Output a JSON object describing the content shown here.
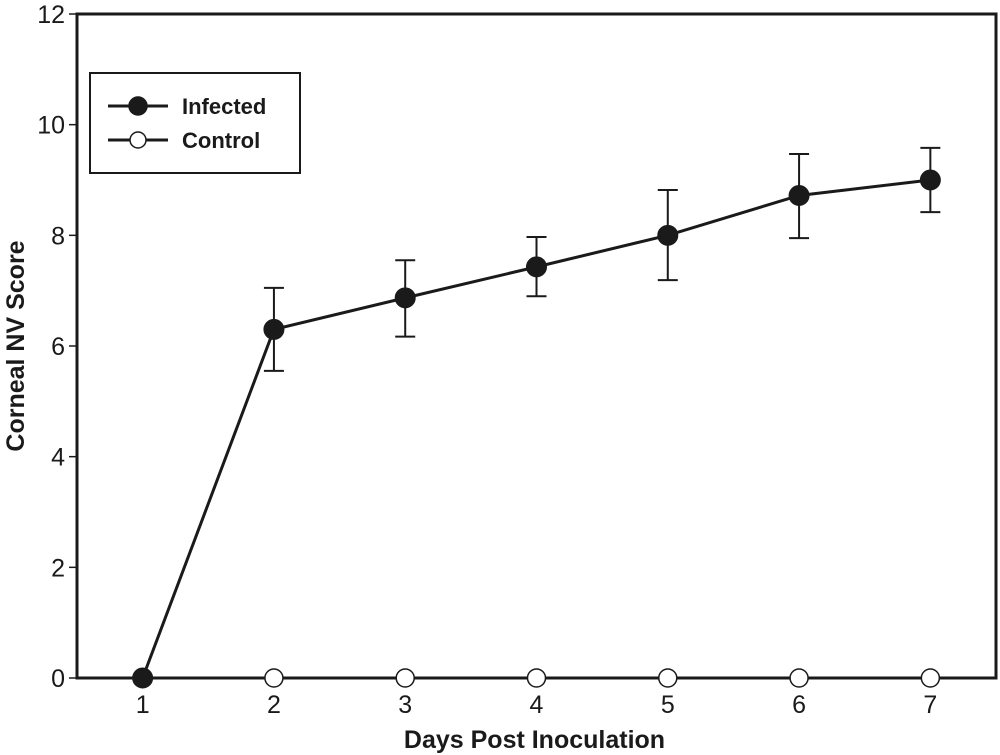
{
  "chart_data": {
    "type": "line",
    "title": "",
    "xlabel": "Days Post Inoculation",
    "ylabel": "Corneal NV Score",
    "xlim": [
      0.5,
      7.5
    ],
    "ylim": [
      0,
      12
    ],
    "x_ticks": [
      1,
      2,
      3,
      4,
      5,
      6,
      7
    ],
    "x_tick_labels": [
      "1",
      "2",
      "3",
      "4",
      "5",
      "6",
      "7"
    ],
    "y_ticks": [
      0,
      2,
      4,
      6,
      8,
      10,
      12
    ],
    "y_tick_labels": [
      "0",
      "2",
      "4",
      "6",
      "8",
      "10",
      "12"
    ],
    "grid": false,
    "legend_position": "top-left",
    "x": [
      1,
      2,
      3,
      4,
      5,
      6,
      7
    ],
    "series": [
      {
        "name": "Infected",
        "marker": "filled-circle",
        "color": "#1a1a1a",
        "values": [
          0,
          6.3,
          6.87,
          7.43,
          8.0,
          8.72,
          9.0
        ],
        "error_upper": [
          null,
          7.05,
          7.55,
          7.97,
          8.82,
          9.47,
          9.58
        ],
        "error_lower": [
          null,
          5.55,
          6.17,
          6.9,
          7.19,
          7.95,
          8.42
        ]
      },
      {
        "name": "Control",
        "marker": "open-circle",
        "color": "#1a1a1a",
        "values": [
          0,
          0,
          0,
          0,
          0,
          0,
          0
        ],
        "error_upper": [
          null,
          null,
          null,
          null,
          null,
          null,
          null
        ],
        "error_lower": [
          null,
          null,
          null,
          null,
          null,
          null,
          null
        ]
      }
    ]
  }
}
